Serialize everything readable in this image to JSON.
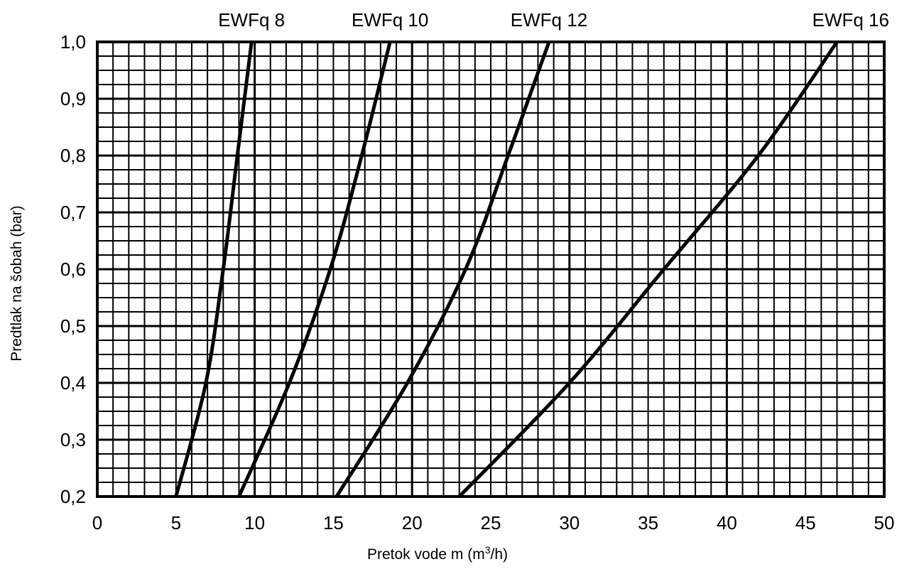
{
  "chart_data": {
    "type": "line",
    "xlabel": "Pretok vode m (m",
    "xlabel_sup": "3",
    "xlabel_tail": "/h)",
    "ylabel": "Predtlak na šobah (bar)",
    "xlim": [
      0,
      50
    ],
    "ylim": [
      0.2,
      1.0
    ],
    "grid": true,
    "x_ticks": [
      0,
      5,
      10,
      15,
      20,
      25,
      30,
      35,
      40,
      45,
      50
    ],
    "x_tick_labels": [
      "0",
      "5",
      "10",
      "15",
      "20",
      "25",
      "30",
      "35",
      "40",
      "45",
      "50"
    ],
    "y_ticks": [
      0.2,
      0.3,
      0.4,
      0.5,
      0.6,
      0.7,
      0.8,
      0.9,
      1.0
    ],
    "y_tick_labels": [
      "0,2",
      "0,3",
      "0,4",
      "0,5",
      "0,6",
      "0,7",
      "0,8",
      "0,9",
      "1,0"
    ],
    "series": [
      {
        "name": "EWFq 8",
        "x": [
          5.0,
          6.9,
          8.0,
          8.9,
          9.8
        ],
        "y": [
          0.2,
          0.4,
          0.6,
          0.8,
          1.0
        ]
      },
      {
        "name": "EWFq 10",
        "x": [
          9.0,
          12.2,
          14.8,
          16.8,
          18.6
        ],
        "y": [
          0.2,
          0.4,
          0.6,
          0.8,
          1.0
        ]
      },
      {
        "name": "EWFq 12",
        "x": [
          15.2,
          19.7,
          23.4,
          26.1,
          28.7
        ],
        "y": [
          0.2,
          0.4,
          0.6,
          0.8,
          1.0
        ]
      },
      {
        "name": "EWFq 16",
        "x": [
          23.0,
          30.0,
          36.0,
          42.0,
          47.0
        ],
        "y": [
          0.2,
          0.4,
          0.6,
          0.8,
          1.0
        ]
      }
    ]
  }
}
